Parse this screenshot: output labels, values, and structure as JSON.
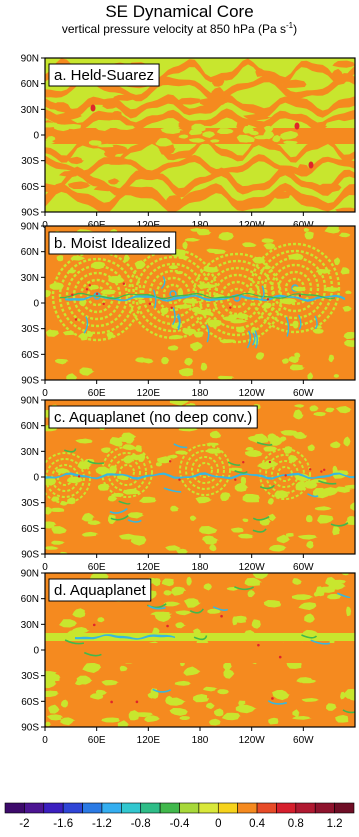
{
  "figure": {
    "title": "SE Dynamical Core",
    "subtitle_main": "vertical pressure velocity at 850 hPa (Pa s",
    "subtitle_sup": "-1",
    "subtitle_end": ")"
  },
  "lat_ticks": [
    "90N",
    "60N",
    "30N",
    "0",
    "30S",
    "60S",
    "90S"
  ],
  "lon_ticks": [
    "0",
    "60E",
    "120E",
    "180",
    "120W",
    "60W"
  ],
  "panels": [
    {
      "label": "a. Held-Suarez",
      "style": "held-suarez"
    },
    {
      "label": "b. Moist Idealized",
      "style": "moist-idealized"
    },
    {
      "label": "c. Aquaplanet (no deep conv.)",
      "style": "aquaplanet-nodeep"
    },
    {
      "label": "d. Aquaplanet",
      "style": "aquaplanet"
    }
  ],
  "colors": {
    "orange": "#f58a1f",
    "yellow_green": "#c8e62e",
    "green": "#41b84c",
    "cyan": "#38b7de",
    "red": "#e0242b",
    "frame": "#000000"
  },
  "colorbar": {
    "colors": [
      "#3d0a6b",
      "#4c1592",
      "#3b1fbf",
      "#2f45d6",
      "#2b7ae4",
      "#34aef0",
      "#32c7cf",
      "#2fbd88",
      "#41b84c",
      "#a7d83a",
      "#d9e83a",
      "#f6d31c",
      "#f58a1f",
      "#e74b28",
      "#d61f2d",
      "#b01931",
      "#8e132d",
      "#6f0e26"
    ],
    "labels": [
      "-2",
      "-1.6",
      "-1.2",
      "-0.8",
      "-0.4",
      "0",
      "0.4",
      "0.8",
      "1.2"
    ]
  }
}
